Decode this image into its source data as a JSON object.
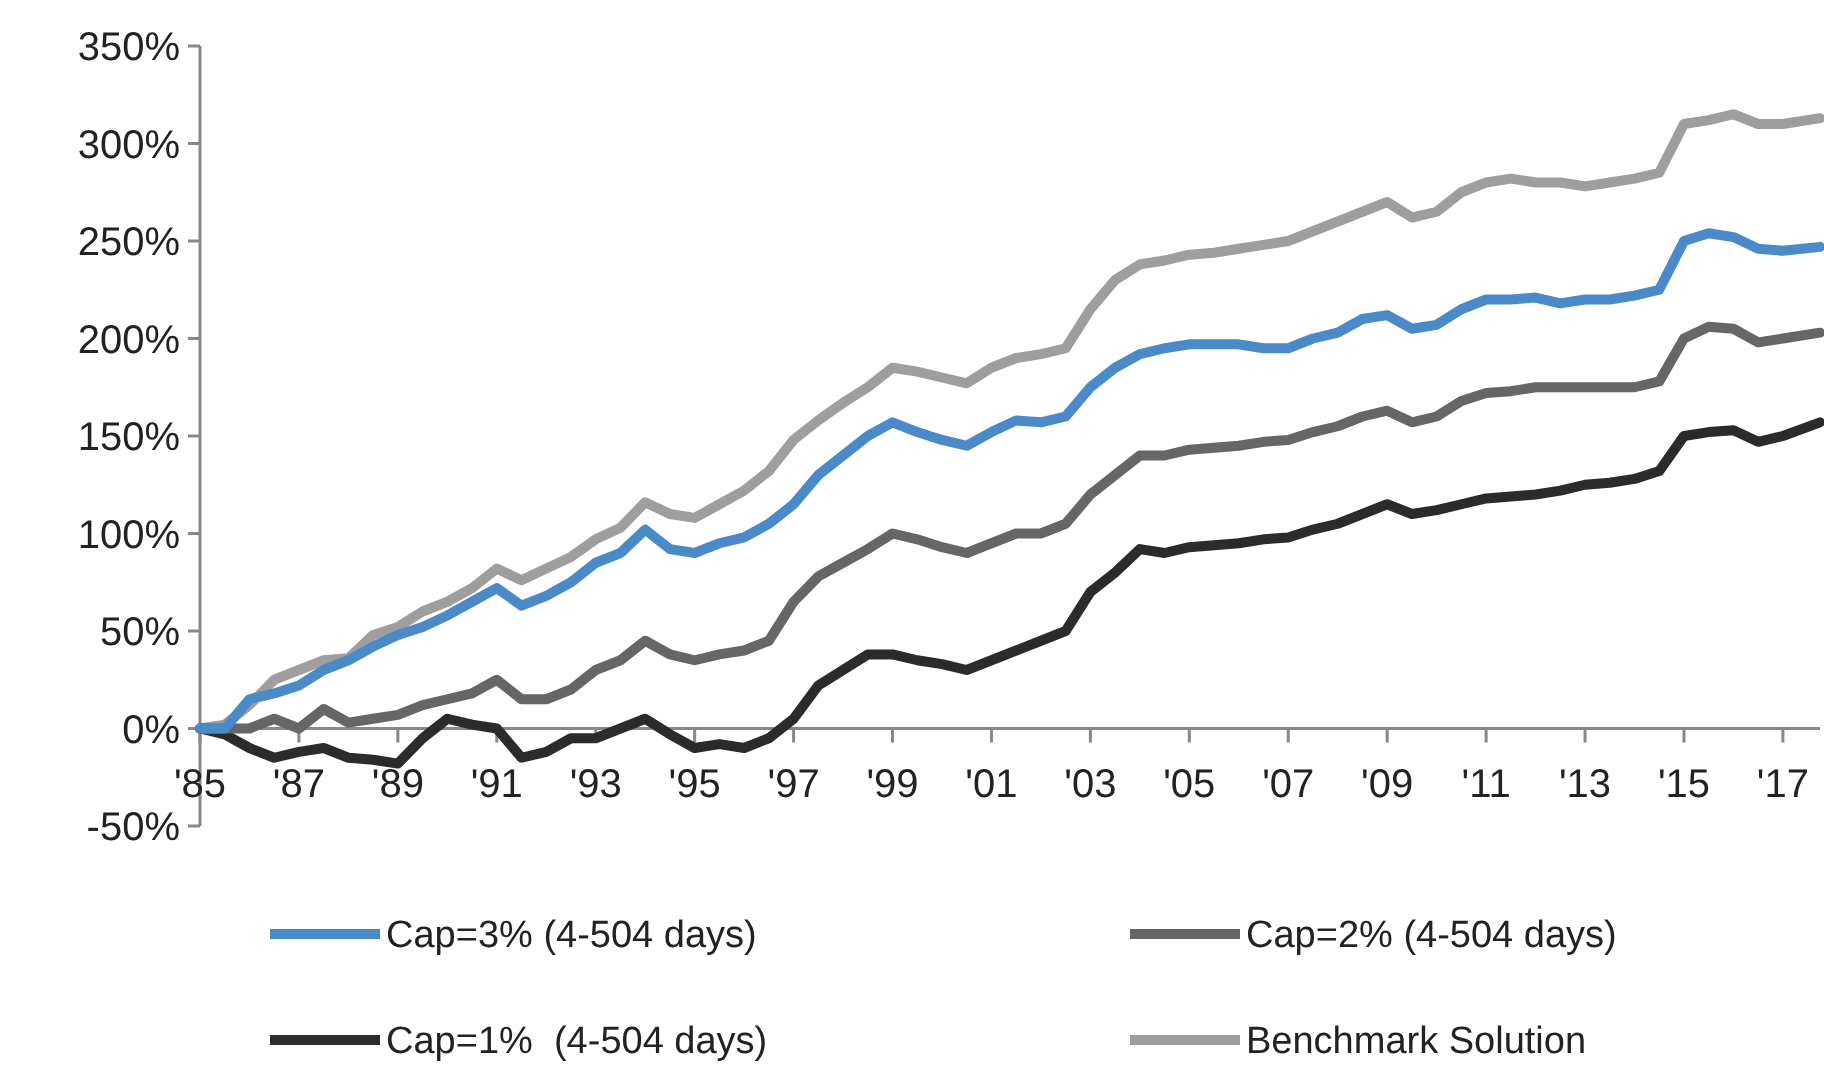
{
  "chart_data": {
    "type": "line",
    "legend": "bottom",
    "line_style": "solid",
    "marker": "none",
    "grid": false,
    "x": [
      1985,
      1985.5,
      1986,
      1986.5,
      1987,
      1987.5,
      1988,
      1988.5,
      1989,
      1989.5,
      1990,
      1990.5,
      1991,
      1991.5,
      1992,
      1992.5,
      1993,
      1993.5,
      1994,
      1994.5,
      1995,
      1995.5,
      1996,
      1996.5,
      1997,
      1997.5,
      1998,
      1998.5,
      1999,
      1999.5,
      2000,
      2000.5,
      2001,
      2001.5,
      2002,
      2002.5,
      2003,
      2003.5,
      2004,
      2004.5,
      2005,
      2005.5,
      2006,
      2006.5,
      2007,
      2007.5,
      2008,
      2008.5,
      2009,
      2009.5,
      2010,
      2010.5,
      2011,
      2011.5,
      2012,
      2012.5,
      2013,
      2013.5,
      2014,
      2014.5,
      2015,
      2015.5,
      2016,
      2016.5,
      2017,
      2017.75
    ],
    "xlim": [
      1985,
      2017.75
    ],
    "xticks": [
      {
        "value": 1985,
        "label": "'85"
      },
      {
        "value": 1987,
        "label": "'87"
      },
      {
        "value": 1989,
        "label": "'89"
      },
      {
        "value": 1991,
        "label": "'91"
      },
      {
        "value": 1993,
        "label": "'93"
      },
      {
        "value": 1995,
        "label": "'95"
      },
      {
        "value": 1997,
        "label": "'97"
      },
      {
        "value": 1999,
        "label": "'99"
      },
      {
        "value": 2001,
        "label": "'01"
      },
      {
        "value": 2003,
        "label": "'03"
      },
      {
        "value": 2005,
        "label": "'05"
      },
      {
        "value": 2007,
        "label": "'07"
      },
      {
        "value": 2009,
        "label": "'09"
      },
      {
        "value": 2011,
        "label": "'11"
      },
      {
        "value": 2013,
        "label": "'13"
      },
      {
        "value": 2015,
        "label": "'15"
      },
      {
        "value": 2017,
        "label": "'17"
      }
    ],
    "ylim": [
      -50,
      350
    ],
    "yticks": [
      {
        "value": -50,
        "label": "-50%"
      },
      {
        "value": 0,
        "label": "0%"
      },
      {
        "value": 50,
        "label": "50%"
      },
      {
        "value": 100,
        "label": "100%"
      },
      {
        "value": 150,
        "label": "150%"
      },
      {
        "value": 200,
        "label": "200%"
      },
      {
        "value": 250,
        "label": "250%"
      },
      {
        "value": 300,
        "label": "300%"
      },
      {
        "value": 350,
        "label": "350%"
      }
    ],
    "series": [
      {
        "name": "Cap=3% (4-504 days)",
        "color": "#4a8ac8",
        "values": [
          0,
          0,
          15,
          18,
          22,
          30,
          35,
          42,
          48,
          52,
          58,
          65,
          72,
          63,
          68,
          75,
          85,
          90,
          102,
          92,
          90,
          95,
          98,
          105,
          115,
          130,
          140,
          150,
          157,
          152,
          148,
          145,
          152,
          158,
          157,
          160,
          175,
          185,
          192,
          195,
          197,
          197,
          197,
          195,
          195,
          200,
          203,
          210,
          212,
          205,
          207,
          215,
          220,
          220,
          221,
          218,
          220,
          220,
          222,
          225,
          250,
          254,
          252,
          246,
          245,
          247
        ]
      },
      {
        "name": "Cap=2% (4-504 days)",
        "color": "#666666",
        "values": [
          0,
          0,
          0,
          5,
          0,
          10,
          3,
          5,
          7,
          12,
          15,
          18,
          25,
          15,
          15,
          20,
          30,
          35,
          45,
          38,
          35,
          38,
          40,
          45,
          65,
          78,
          85,
          92,
          100,
          97,
          93,
          90,
          95,
          100,
          100,
          105,
          120,
          130,
          140,
          140,
          143,
          144,
          145,
          147,
          148,
          152,
          155,
          160,
          163,
          157,
          160,
          168,
          172,
          173,
          175,
          175,
          175,
          175,
          175,
          178,
          200,
          206,
          205,
          198,
          200,
          203
        ]
      },
      {
        "name": "Cap=1%  (4-504 days)",
        "color": "#2b2b2b",
        "values": [
          0,
          -3,
          -10,
          -15,
          -12,
          -10,
          -15,
          -16,
          -18,
          -5,
          5,
          2,
          0,
          -15,
          -12,
          -5,
          -5,
          0,
          5,
          -3,
          -10,
          -8,
          -10,
          -5,
          5,
          22,
          30,
          38,
          38,
          35,
          33,
          30,
          35,
          40,
          45,
          50,
          70,
          80,
          92,
          90,
          93,
          94,
          95,
          97,
          98,
          102,
          105,
          110,
          115,
          110,
          112,
          115,
          118,
          119,
          120,
          122,
          125,
          126,
          128,
          132,
          150,
          152,
          153,
          147,
          150,
          157
        ]
      },
      {
        "name": "Benchmark Solution",
        "color": "#9e9e9e",
        "values": [
          0,
          2,
          12,
          25,
          30,
          35,
          36,
          48,
          52,
          60,
          65,
          72,
          82,
          76,
          82,
          88,
          97,
          103,
          116,
          110,
          108,
          115,
          122,
          132,
          148,
          158,
          167,
          175,
          185,
          183,
          180,
          177,
          185,
          190,
          192,
          195,
          215,
          230,
          238,
          240,
          243,
          244,
          246,
          248,
          250,
          255,
          260,
          265,
          270,
          262,
          265,
          275,
          280,
          282,
          280,
          280,
          278,
          280,
          282,
          285,
          310,
          312,
          315,
          310,
          310,
          313
        ]
      }
    ]
  }
}
